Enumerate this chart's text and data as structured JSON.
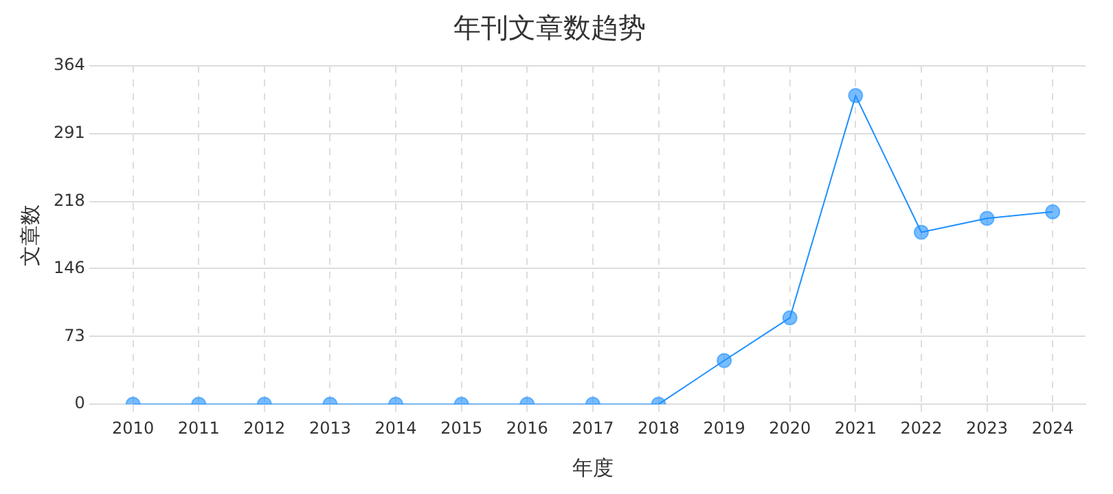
{
  "chart_data": {
    "type": "line",
    "title": "年刊文章数趋势",
    "xlabel": "年度",
    "ylabel": "文章数",
    "categories": [
      "2010",
      "2011",
      "2012",
      "2013",
      "2014",
      "2015",
      "2016",
      "2017",
      "2018",
      "2019",
      "2020",
      "2021",
      "2022",
      "2023",
      "2024"
    ],
    "series": [
      {
        "color": "#1e90ff",
        "values": [
          0,
          0,
          0,
          0,
          0,
          0,
          0,
          0,
          0,
          47,
          93,
          332,
          185,
          200,
          207
        ]
      }
    ],
    "ylim": [
      0,
      364
    ],
    "yticks": [
      0,
      73,
      146,
      218,
      291,
      364
    ],
    "grid": true,
    "legend": false,
    "marker": "circle",
    "line_style": "solid"
  }
}
